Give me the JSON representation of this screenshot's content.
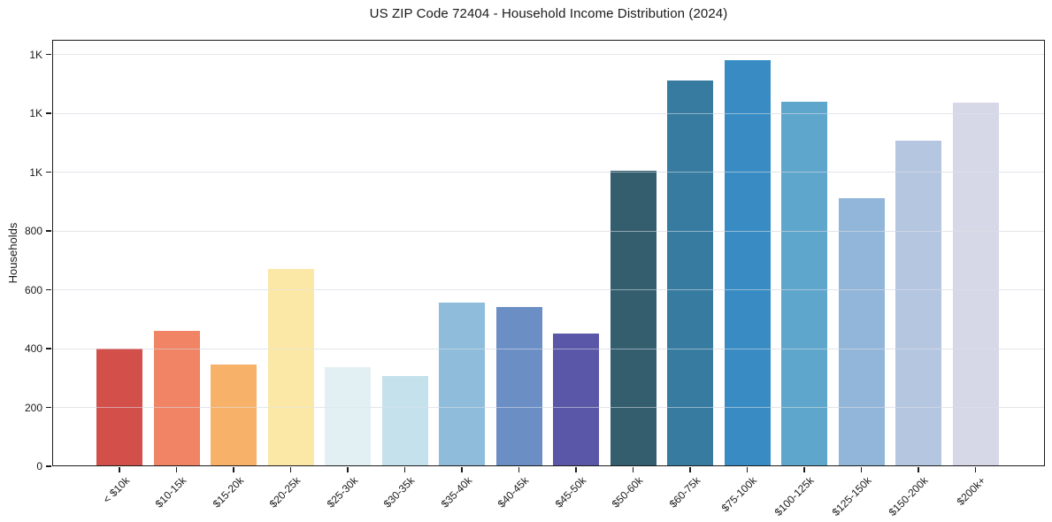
{
  "colors": {
    "background": "#ffffff",
    "text": "#1a1a1a",
    "spine": "#1a1a1a",
    "grid": "#e7e8ec"
  },
  "chart_data": {
    "type": "bar",
    "title": "US ZIP Code 72404 - Household Income Distribution (2024)",
    "xlabel": "",
    "ylabel": "Households",
    "categories": [
      "< $10k",
      "$10-15k",
      "$15-20k",
      "$20-25k",
      "$25-30k",
      "$30-35k",
      "$35-40k",
      "$40-45k",
      "$45-50k",
      "$50-60k",
      "$60-75k",
      "$75-100k",
      "$100-125k",
      "$125-150k",
      "$150-200k",
      "$200k+"
    ],
    "values": [
      400,
      459,
      345,
      671,
      336,
      306,
      558,
      543,
      450,
      1006,
      1312,
      1380,
      1238,
      913,
      1107,
      1235
    ],
    "bar_colors": [
      "#d24f4a",
      "#f08465",
      "#f8b168",
      "#fce8a6",
      "#e2f0f3",
      "#c4e1ec",
      "#8fbcdb",
      "#6b8fc5",
      "#5a57a8",
      "#345d6e",
      "#377ba0",
      "#388cc3",
      "#5fa6cc",
      "#92b6d9",
      "#b5c6e0",
      "#d7d8e7"
    ],
    "ylim": [
      0,
      1450
    ],
    "yticks": [
      0,
      200,
      400,
      600,
      800,
      1000,
      1200,
      1400
    ],
    "ytick_labels": [
      "0",
      "200",
      "400",
      "600",
      "800",
      "1K",
      "1K",
      "1K"
    ],
    "grid": "horizontal",
    "legend_position": "none"
  }
}
